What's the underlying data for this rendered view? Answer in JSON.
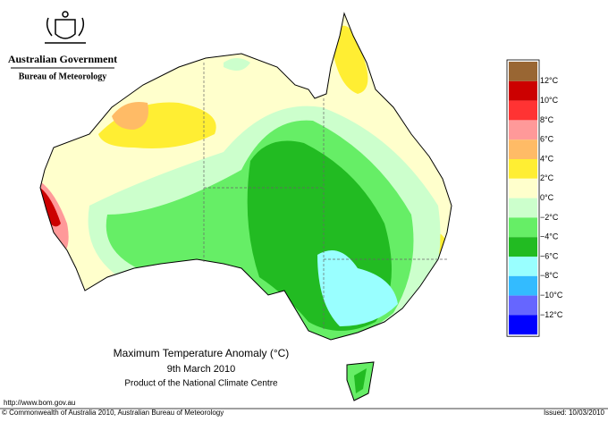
{
  "header": {
    "government": "Australian Government",
    "bureau": "Bureau of Meteorology"
  },
  "title": {
    "line1": "Maximum Temperature Anomaly (°C)",
    "line2": "9th March 2010",
    "line3": "Product of the National Climate Centre"
  },
  "legend": {
    "colors": [
      "#996633",
      "#cc0000",
      "#ff3333",
      "#ff9999",
      "#ffbb66",
      "#ffee33",
      "#ffffcc",
      "#ccffcc",
      "#66ee66",
      "#22bb22",
      "#99ffff",
      "#33bbff",
      "#6666ff",
      "#0000ff"
    ],
    "labels": [
      "12°C",
      "10°C",
      "8°C",
      "6°C",
      "4°C",
      "2°C",
      "0°C",
      "−2°C",
      "−4°C",
      "−6°C",
      "−8°C",
      "−10°C",
      "−12°C"
    ]
  },
  "footer": {
    "url": "http://www.bom.gov.au",
    "copyright": "© Commonwealth of Australia 2010, Australian Bureau of Meteorology",
    "issued": "Issued: 10/03/2010"
  }
}
